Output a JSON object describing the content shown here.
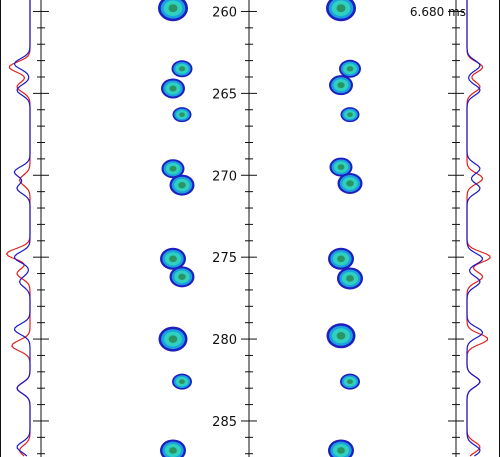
{
  "time_readout": "6.680 ms",
  "colors": {
    "axis": "#111111",
    "profile_red": "#e0201b",
    "profile_blue": "#1a1ac8",
    "blob_dark": "#1f1fc0",
    "blob_mid": "#1aa0e0",
    "blob_light": "#2fd0c0",
    "blob_core": "#2a8a55"
  },
  "chart_data": {
    "type": "heatmap",
    "title": "",
    "y_axis": {
      "ylim": [
        259.3,
        287.2
      ],
      "ticks": [
        260,
        265,
        270,
        275,
        280,
        285
      ],
      "tick_labels": [
        "260",
        "265",
        "270",
        "275",
        "280",
        "285"
      ],
      "minor_tick_step": 1
    },
    "panels": [
      {
        "name": "",
        "blobs": [
          {
            "y": 259.8,
            "size": 1.6
          },
          {
            "y": 263.5,
            "size": 0.7
          },
          {
            "y": 264.7,
            "size": 1.0
          },
          {
            "y": 266.3,
            "size": 0.5
          },
          {
            "y": 269.6,
            "size": 0.9
          },
          {
            "y": 270.6,
            "size": 1.1
          },
          {
            "y": 275.1,
            "size": 1.2
          },
          {
            "y": 276.2,
            "size": 1.1
          },
          {
            "y": 280.0,
            "size": 1.5
          },
          {
            "y": 282.6,
            "size": 0.6
          },
          {
            "y": 286.8,
            "size": 1.2
          }
        ]
      },
      {
        "name": "",
        "blobs": [
          {
            "y": 259.8,
            "size": 1.6
          },
          {
            "y": 263.5,
            "size": 0.8
          },
          {
            "y": 264.5,
            "size": 1.0
          },
          {
            "y": 266.3,
            "size": 0.5
          },
          {
            "y": 269.5,
            "size": 0.9
          },
          {
            "y": 270.5,
            "size": 1.1
          },
          {
            "y": 275.1,
            "size": 1.2
          },
          {
            "y": 276.3,
            "size": 1.2
          },
          {
            "y": 279.8,
            "size": 1.5
          },
          {
            "y": 282.6,
            "size": 0.6
          },
          {
            "y": 286.8,
            "size": 1.2
          }
        ]
      }
    ],
    "profiles": {
      "left": {
        "series": [
          {
            "name": "",
            "color": "#e0201b",
            "peaks": [
              {
                "y": 263.4,
                "amp": 0.8
              },
              {
                "y": 264.6,
                "amp": 0.5
              },
              {
                "y": 270.3,
                "amp": 0.4
              },
              {
                "y": 274.8,
                "amp": 0.9
              },
              {
                "y": 276.0,
                "amp": 0.5
              },
              {
                "y": 280.4,
                "amp": 0.7
              },
              {
                "y": 283.0,
                "amp": 0.5
              },
              {
                "y": 286.8,
                "amp": 0.4
              }
            ]
          },
          {
            "name": "",
            "color": "#1a1ac8",
            "peaks": [
              {
                "y": 263.2,
                "amp": 0.6
              },
              {
                "y": 264.8,
                "amp": 0.5
              },
              {
                "y": 269.8,
                "amp": 0.6
              },
              {
                "y": 270.8,
                "amp": 0.5
              },
              {
                "y": 275.0,
                "amp": 0.6
              },
              {
                "y": 276.5,
                "amp": 0.4
              },
              {
                "y": 279.4,
                "amp": 0.6
              },
              {
                "y": 283.0,
                "amp": 0.5
              },
              {
                "y": 286.6,
                "amp": 0.5
              }
            ]
          }
        ]
      },
      "right": {
        "series": [
          {
            "name": "",
            "color": "#e0201b",
            "peaks": [
              {
                "y": 263.4,
                "amp": 0.6
              },
              {
                "y": 264.6,
                "amp": 0.5
              },
              {
                "y": 270.2,
                "amp": 0.6
              },
              {
                "y": 275.0,
                "amp": 0.9
              },
              {
                "y": 276.2,
                "amp": 0.6
              },
              {
                "y": 280.0,
                "amp": 0.8
              },
              {
                "y": 282.6,
                "amp": 0.5
              },
              {
                "y": 286.6,
                "amp": 0.5
              }
            ]
          },
          {
            "name": "",
            "color": "#1a1ac8",
            "peaks": [
              {
                "y": 263.3,
                "amp": 0.5
              },
              {
                "y": 264.8,
                "amp": 0.5
              },
              {
                "y": 269.6,
                "amp": 0.5
              },
              {
                "y": 270.8,
                "amp": 0.5
              },
              {
                "y": 275.1,
                "amp": 0.6
              },
              {
                "y": 276.5,
                "amp": 0.5
              },
              {
                "y": 279.6,
                "amp": 0.6
              },
              {
                "y": 282.6,
                "amp": 0.5
              },
              {
                "y": 286.8,
                "amp": 0.5
              }
            ]
          }
        ]
      }
    }
  }
}
